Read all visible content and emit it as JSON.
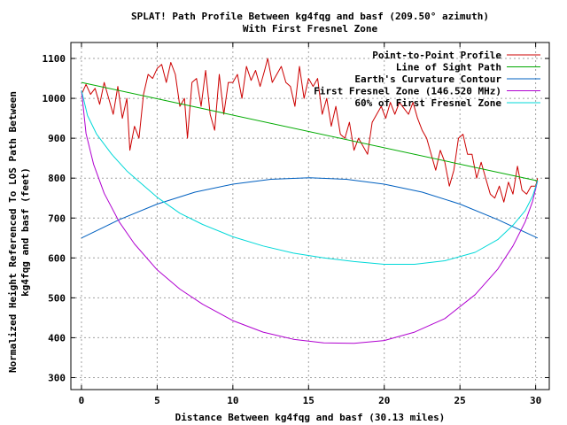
{
  "chart_data": {
    "type": "line",
    "title": "SPLAT! Path Profile Between kg4fqg and basf (209.50° azimuth)",
    "subtitle": "With First Fresnel Zone",
    "xlabel": "Distance Between kg4fqg and basf (30.13 miles)",
    "ylabel_line1": "Normalized Height Referenced To LOS Path Between",
    "ylabel_line2": "kg4fqg and basf (feet)",
    "xlim": [
      -0.7,
      30.9
    ],
    "ylim": [
      270,
      1140
    ],
    "xticks": [
      0,
      5,
      10,
      15,
      20,
      25,
      30
    ],
    "yticks": [
      300,
      400,
      500,
      600,
      700,
      800,
      900,
      1000,
      1100
    ],
    "xtick_labels": [
      "0",
      "5",
      "10",
      "15",
      "20",
      "25",
      "30"
    ],
    "ytick_labels": [
      "300",
      "400",
      "500",
      "600",
      "700",
      "800",
      "900",
      "1000",
      "1100"
    ],
    "grid": true,
    "legend_position": "top-right",
    "series": [
      {
        "name": "Point-to-Point Profile",
        "color": "#cc0000",
        "x": [
          0,
          0.3,
          0.6,
          0.9,
          1.2,
          1.5,
          1.8,
          2.1,
          2.4,
          2.7,
          3.0,
          3.2,
          3.5,
          3.8,
          4.1,
          4.4,
          4.7,
          5.0,
          5.3,
          5.6,
          5.9,
          6.2,
          6.5,
          6.8,
          7.0,
          7.3,
          7.6,
          7.9,
          8.2,
          8.5,
          8.8,
          9.1,
          9.4,
          9.7,
          10.0,
          10.3,
          10.6,
          10.9,
          11.2,
          11.5,
          11.8,
          12.1,
          12.3,
          12.6,
          12.9,
          13.2,
          13.5,
          13.8,
          14.1,
          14.4,
          14.7,
          15.0,
          15.3,
          15.6,
          15.9,
          16.2,
          16.5,
          16.8,
          17.1,
          17.4,
          17.7,
          18.0,
          18.3,
          18.6,
          18.9,
          19.2,
          19.5,
          19.8,
          20.1,
          20.4,
          20.7,
          21.0,
          21.3,
          21.6,
          21.9,
          22.2,
          22.5,
          22.8,
          23.1,
          23.4,
          23.7,
          24.0,
          24.3,
          24.6,
          24.9,
          25.2,
          25.5,
          25.8,
          26.1,
          26.4,
          26.7,
          27.0,
          27.3,
          27.6,
          27.9,
          28.2,
          28.5,
          28.8,
          29.1,
          29.4,
          29.7,
          30.0,
          30.13
        ],
        "y": [
          1010,
          1035,
          1010,
          1025,
          985,
          1040,
          1000,
          960,
          1030,
          950,
          1000,
          870,
          930,
          900,
          1010,
          1060,
          1050,
          1075,
          1085,
          1040,
          1090,
          1060,
          980,
          1000,
          900,
          1040,
          1050,
          980,
          1070,
          960,
          920,
          1060,
          960,
          1040,
          1040,
          1060,
          1000,
          1080,
          1045,
          1070,
          1030,
          1070,
          1100,
          1040,
          1060,
          1080,
          1040,
          1030,
          980,
          1080,
          1000,
          1050,
          1030,
          1050,
          960,
          1000,
          930,
          980,
          910,
          900,
          940,
          870,
          900,
          880,
          860,
          940,
          960,
          980,
          950,
          990,
          960,
          990,
          975,
          960,
          990,
          950,
          920,
          900,
          860,
          820,
          870,
          840,
          780,
          820,
          900,
          910,
          860,
          860,
          800,
          840,
          800,
          760,
          750,
          780,
          740,
          790,
          760,
          830,
          770,
          760,
          780,
          780,
          800
        ]
      },
      {
        "name": "Line of Sight Path",
        "color": "#00aa00",
        "x": [
          0,
          30.13
        ],
        "y": [
          1040,
          793
        ]
      },
      {
        "name": "Earth's Curvature Contour",
        "color": "#0060c0",
        "x": [
          0,
          2.5,
          5,
          7.5,
          10,
          12.5,
          15.065,
          17.5,
          20,
          22.5,
          25,
          27.5,
          30.13
        ],
        "y": [
          650,
          696,
          735,
          765,
          785,
          797,
          801,
          797,
          785,
          765,
          735,
          696,
          650
        ]
      },
      {
        "name": "First Fresnel Zone (146.520 MHz)",
        "color": "#b000d0",
        "x": [
          0,
          0.3,
          0.8,
          1.5,
          2.5,
          3.5,
          5,
          6.5,
          8,
          10,
          12,
          14,
          16,
          18,
          20,
          22,
          24,
          26,
          27.5,
          28.5,
          29.3,
          29.8,
          30.13
        ],
        "y": [
          1020,
          912,
          835,
          762,
          690,
          635,
          570,
          522,
          484,
          443,
          414,
          396,
          387,
          386,
          393,
          414,
          448,
          508,
          572,
          630,
          690,
          742,
          793
        ]
      },
      {
        "name": "60% of First Fresnel Zone",
        "color": "#00d8d8",
        "x": [
          0,
          0.4,
          1,
          2,
          3,
          4,
          5,
          6.5,
          8,
          10,
          12,
          14,
          16,
          18,
          20,
          22,
          24,
          26,
          27.5,
          28.5,
          29.3,
          29.8,
          30.13
        ],
        "y": [
          1020,
          957,
          910,
          860,
          818,
          785,
          752,
          712,
          684,
          653,
          630,
          612,
          600,
          591,
          584,
          584,
          593,
          614,
          646,
          682,
          718,
          755,
          793
        ]
      }
    ]
  }
}
